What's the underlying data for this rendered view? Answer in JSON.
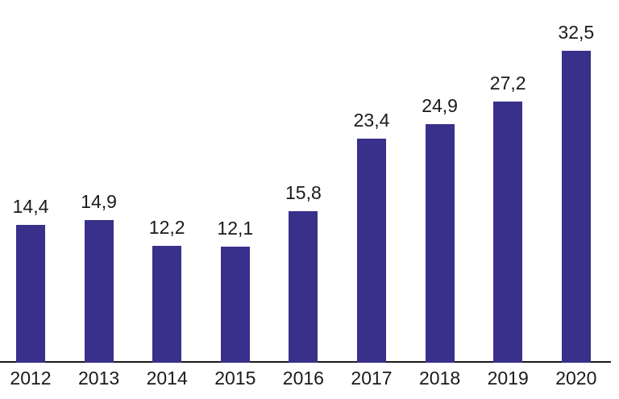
{
  "chart_data": {
    "type": "bar",
    "title": "",
    "xlabel": "",
    "ylabel": "",
    "categories": [
      "2012",
      "2013",
      "2014",
      "2015",
      "2016",
      "2017",
      "2018",
      "2019",
      "2020"
    ],
    "values": [
      14.4,
      14.9,
      12.2,
      12.1,
      15.8,
      23.4,
      24.9,
      27.2,
      32.5
    ],
    "value_labels": [
      "14,4",
      "14,9",
      "12,2",
      "12,1",
      "15,8",
      "23,4",
      "24,9",
      "27,2",
      "32,5"
    ],
    "decimal_separator": ",",
    "bar_color": "#39308B",
    "axis_color": "#1a1a1a",
    "text_color": "#1a1a1a",
    "background_color": "#ffffff",
    "ylim": [
      0,
      35
    ],
    "grid": false,
    "legend": false,
    "y_axis_visible": false,
    "data_labels_position": "above-bars"
  }
}
